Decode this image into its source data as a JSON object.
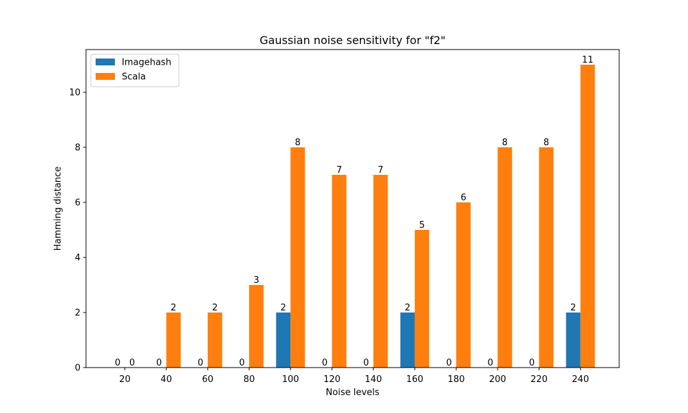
{
  "chart_data": {
    "type": "bar",
    "title": "Gaussian noise sensitivity for \"f2\"",
    "xlabel": "Noise levels",
    "ylabel": "Hamming distance",
    "categories": [
      "20",
      "40",
      "60",
      "80",
      "100",
      "120",
      "140",
      "160",
      "180",
      "200",
      "220",
      "240"
    ],
    "series": [
      {
        "name": "Imagehash",
        "color": "#1f77b4",
        "values": [
          0,
          0,
          0,
          0,
          2,
          0,
          0,
          2,
          0,
          0,
          0,
          2
        ]
      },
      {
        "name": "Scala",
        "color": "#ff7f0e",
        "values": [
          0,
          2,
          2,
          3,
          8,
          7,
          7,
          5,
          6,
          8,
          8,
          11
        ]
      }
    ],
    "ylim": [
      0,
      11.55
    ],
    "yticks": [
      0,
      2,
      4,
      6,
      8,
      10
    ],
    "grid": false,
    "legend_position": "top-left",
    "data_labels": true
  }
}
